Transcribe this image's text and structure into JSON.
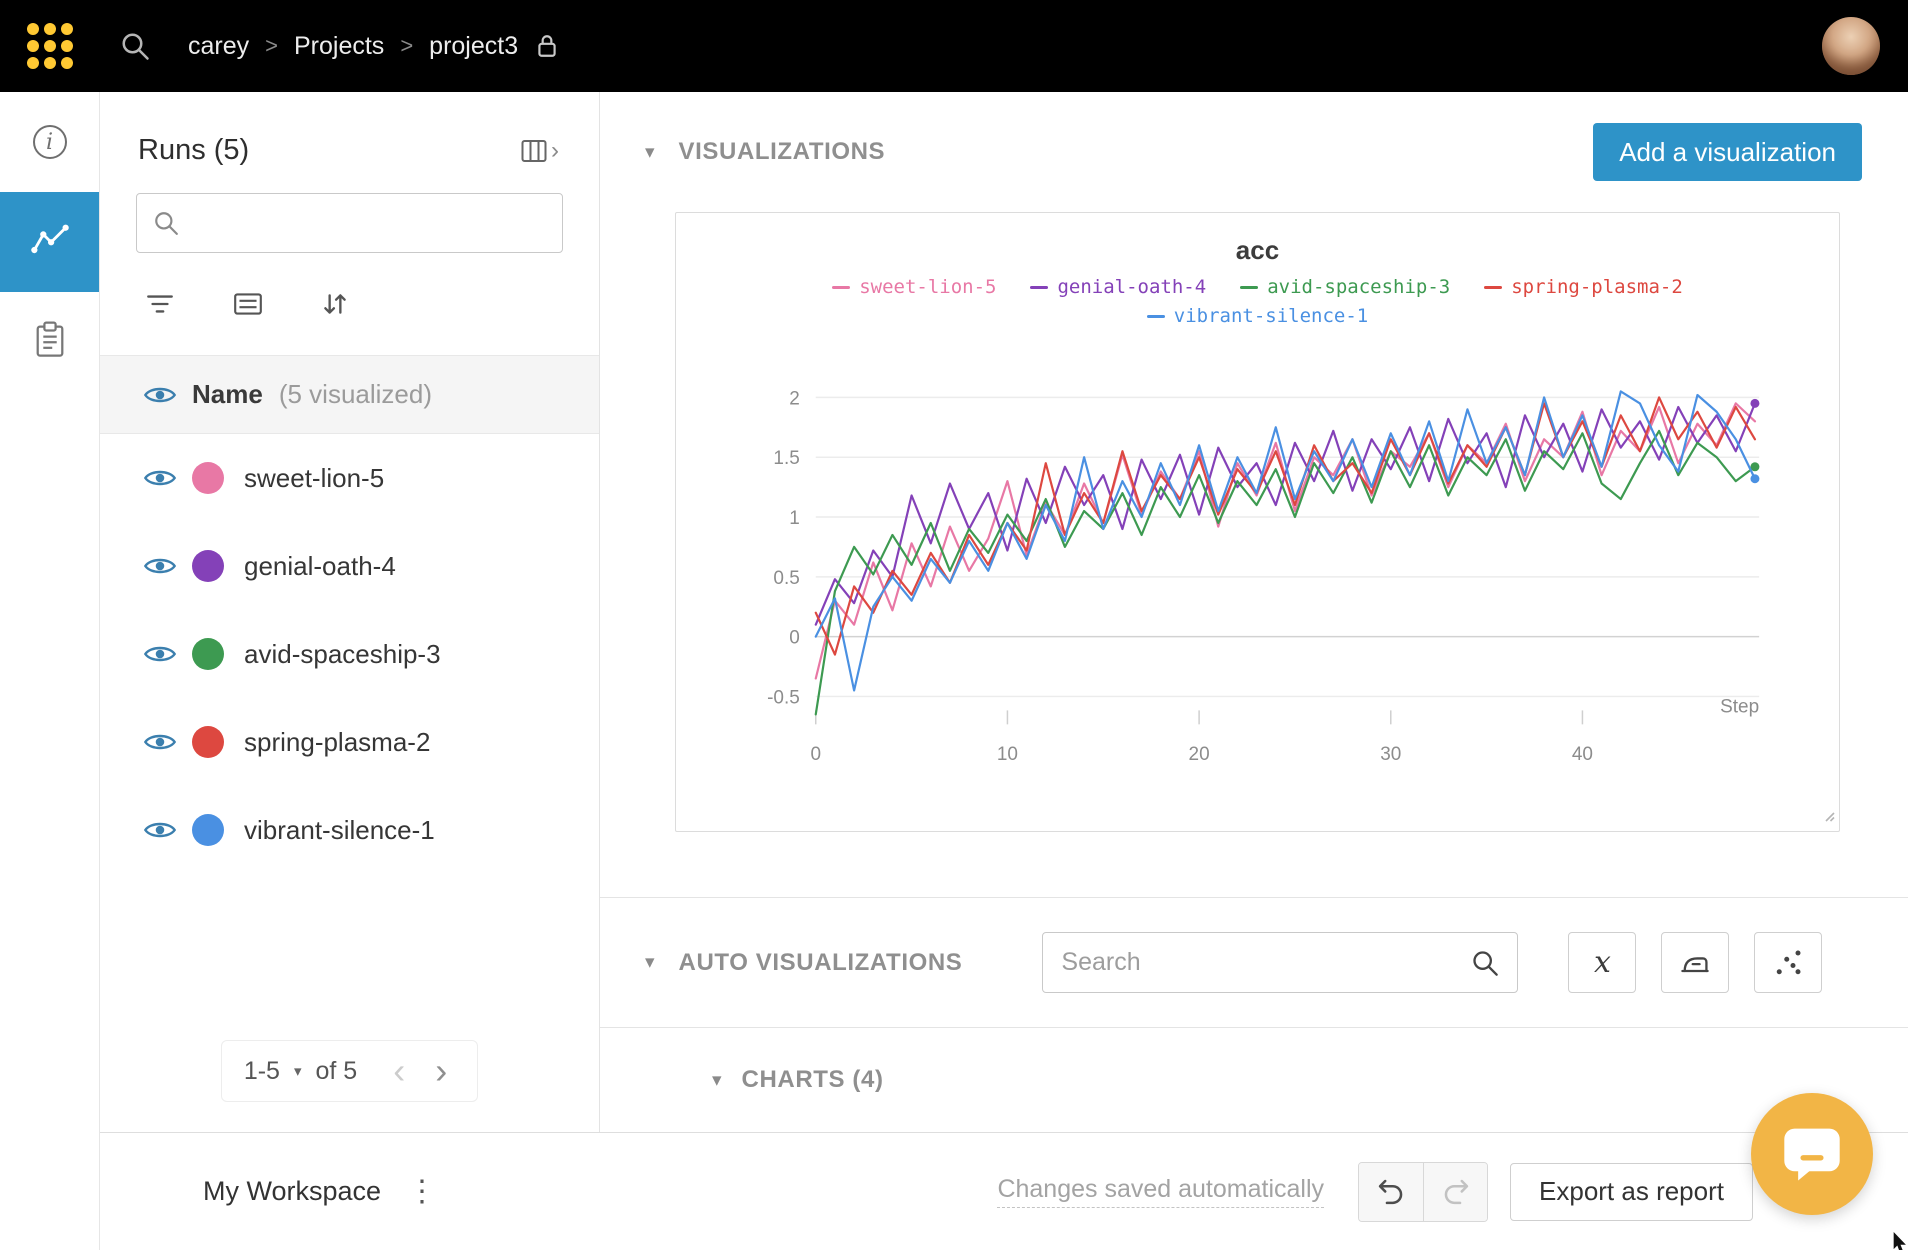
{
  "topnav": {
    "breadcrumb": [
      "carey",
      "Projects",
      "project3"
    ],
    "separator": ">"
  },
  "sidebar": {
    "runs_title": "Runs (5)",
    "search_value": "",
    "name_label": "Name",
    "visualized_label": "(5 visualized)",
    "pagination": {
      "range": "1-5",
      "of_label": "of 5"
    }
  },
  "main": {
    "visualizations_title": "VISUALIZATIONS",
    "add_visualization_label": "Add a visualization",
    "auto_visualizations_title": "AUTO VISUALIZATIONS",
    "search_placeholder": "Search",
    "charts_title": "CHARTS (4)"
  },
  "bottombar": {
    "workspace_label": "My Workspace",
    "saved_status": "Changes saved automatically",
    "export_label": "Export as report"
  },
  "colors": {
    "accent": "#2e93c8",
    "gold": "#ffc933",
    "eye": "#3b7fae"
  },
  "icons": {
    "caret_down": "▾",
    "kebab": "⋮",
    "chevron_left": "‹",
    "chevron_right": "›"
  },
  "chart_data": {
    "type": "line",
    "title": "acc",
    "xlabel": "Step",
    "x_ticks": [
      0,
      10,
      20,
      30,
      40
    ],
    "y_ticks": [
      -0.5,
      0,
      0.5,
      1,
      1.5,
      2
    ],
    "xlim": [
      0,
      49
    ],
    "ylim": [
      -0.85,
      2.3
    ],
    "grid": "horizontal",
    "legend_position": "top",
    "series": [
      {
        "name": "sweet-lion-5",
        "color": "#e878a5",
        "end_dot": false,
        "values": [
          -0.35,
          0.3,
          0.1,
          0.62,
          0.22,
          0.78,
          0.42,
          0.92,
          0.55,
          0.82,
          1.3,
          0.68,
          1.12,
          0.85,
          1.28,
          0.95,
          1.52,
          1.02,
          1.38,
          1.15,
          1.55,
          0.92,
          1.45,
          1.18,
          1.62,
          1.05,
          1.5,
          1.35,
          1.65,
          1.18,
          1.55,
          1.42,
          1.7,
          1.25,
          1.6,
          1.45,
          1.78,
          1.3,
          1.65,
          1.5,
          1.88,
          1.35,
          1.72,
          1.55,
          1.92,
          1.45,
          1.78,
          1.6,
          1.95,
          1.8
        ]
      },
      {
        "name": "genial-oath-4",
        "color": "#8441b8",
        "end_dot": true,
        "values": [
          0.1,
          0.48,
          0.28,
          0.72,
          0.5,
          1.18,
          0.78,
          1.28,
          0.9,
          1.2,
          0.72,
          1.32,
          0.95,
          1.42,
          1.1,
          1.35,
          0.9,
          1.48,
          1.15,
          1.52,
          1.02,
          1.58,
          1.25,
          1.45,
          1.1,
          1.62,
          1.3,
          1.72,
          1.22,
          1.65,
          1.4,
          1.75,
          1.3,
          1.82,
          1.45,
          1.7,
          1.25,
          1.85,
          1.5,
          1.78,
          1.38,
          1.9,
          1.58,
          1.8,
          1.48,
          1.92,
          1.62,
          1.85,
          1.55,
          1.95
        ]
      },
      {
        "name": "avid-spaceship-3",
        "color": "#3d9a51",
        "end_dot": true,
        "values": [
          -0.65,
          0.38,
          0.75,
          0.52,
          0.85,
          0.6,
          0.95,
          0.55,
          0.9,
          0.7,
          1.02,
          0.8,
          1.15,
          0.75,
          1.05,
          0.9,
          1.2,
          0.85,
          1.25,
          1.0,
          1.35,
          0.95,
          1.3,
          1.1,
          1.4,
          1.0,
          1.45,
          1.2,
          1.5,
          1.12,
          1.55,
          1.25,
          1.6,
          1.18,
          1.5,
          1.35,
          1.65,
          1.22,
          1.55,
          1.4,
          1.7,
          1.28,
          1.15,
          1.45,
          1.72,
          1.35,
          1.62,
          1.5,
          1.3,
          1.42
        ]
      },
      {
        "name": "spring-plasma-2",
        "color": "#dd4840",
        "end_dot": false,
        "values": [
          0.2,
          -0.15,
          0.42,
          0.2,
          0.55,
          0.35,
          0.7,
          0.45,
          0.85,
          0.6,
          0.95,
          0.72,
          1.45,
          0.85,
          1.2,
          0.95,
          1.55,
          1.05,
          1.35,
          1.15,
          1.5,
          1.02,
          1.4,
          1.2,
          1.55,
          1.1,
          1.6,
          1.3,
          1.45,
          1.2,
          1.65,
          1.35,
          1.7,
          1.28,
          1.6,
          1.42,
          1.75,
          1.35,
          1.95,
          1.5,
          1.8,
          1.42,
          1.85,
          1.55,
          2.0,
          1.65,
          1.88,
          1.58,
          1.92,
          1.65
        ]
      },
      {
        "name": "vibrant-silence-1",
        "color": "#4a90e2",
        "end_dot": true,
        "values": [
          0.0,
          0.32,
          -0.45,
          0.25,
          0.5,
          0.3,
          0.65,
          0.45,
          0.8,
          0.55,
          0.95,
          0.65,
          1.1,
          0.8,
          1.5,
          0.9,
          1.3,
          1.0,
          1.45,
          1.1,
          1.6,
          1.05,
          1.5,
          1.2,
          1.75,
          1.15,
          1.55,
          1.3,
          1.65,
          1.25,
          1.7,
          1.35,
          1.8,
          1.3,
          1.9,
          1.45,
          1.75,
          1.35,
          2.0,
          1.5,
          1.85,
          1.42,
          2.05,
          1.95,
          1.6,
          1.38,
          2.02,
          1.88,
          1.65,
          1.32
        ]
      }
    ]
  }
}
